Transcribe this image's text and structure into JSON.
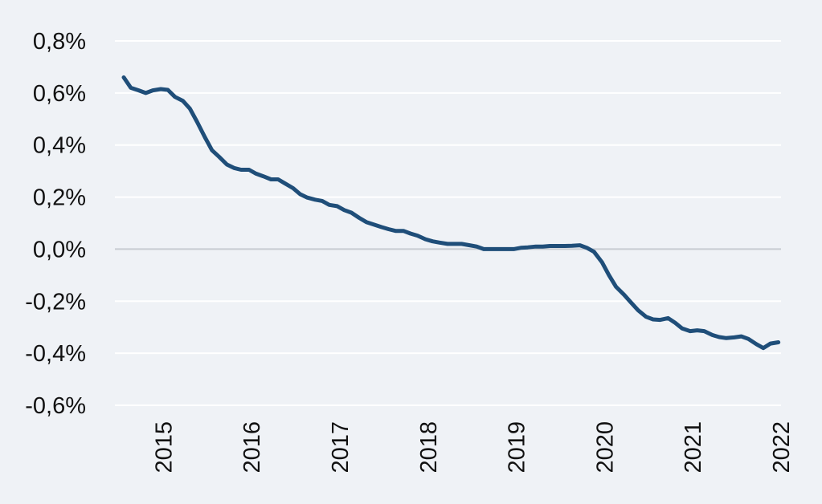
{
  "colors": {
    "background": "#eff2f6",
    "grid": "#ffffff",
    "zero_line": "#c8ccd2",
    "series": "#1f4e79",
    "text": "#111111"
  },
  "chart_data": {
    "type": "line",
    "title": "",
    "xlabel": "",
    "ylabel": "",
    "x_ticks": [
      "2015",
      "2016",
      "2017",
      "2018",
      "2019",
      "2020",
      "2021",
      "2022"
    ],
    "y_ticks": [
      0.8,
      0.6,
      0.4,
      0.2,
      0.0,
      -0.2,
      -0.4,
      -0.6
    ],
    "y_tick_labels": [
      "0,8%",
      "0,6%",
      "0,4%",
      "0,2%",
      "0,0%",
      "-0,2%",
      "-0,4%",
      "-0,6%"
    ],
    "ylim": [
      -0.6,
      0.8
    ],
    "xlim": [
      2014.45,
      2022.0
    ],
    "grid": "horizontal",
    "legend": "none",
    "series": [
      {
        "x": [
          2014.55,
          2014.63,
          2014.72,
          2014.8,
          2014.88,
          2014.97,
          2015.05,
          2015.13,
          2015.22,
          2015.3,
          2015.38,
          2015.47,
          2015.55,
          2015.63,
          2015.72,
          2015.8,
          2015.88,
          2015.97,
          2016.05,
          2016.13,
          2016.22,
          2016.3,
          2016.38,
          2016.47,
          2016.55,
          2016.63,
          2016.72,
          2016.8,
          2016.88,
          2016.97,
          2017.05,
          2017.13,
          2017.22,
          2017.3,
          2017.38,
          2017.47,
          2017.55,
          2017.63,
          2017.72,
          2017.8,
          2017.88,
          2017.97,
          2018.05,
          2018.13,
          2018.22,
          2018.3,
          2018.38,
          2018.47,
          2018.55,
          2018.63,
          2018.72,
          2018.8,
          2018.88,
          2018.97,
          2019.05,
          2019.13,
          2019.22,
          2019.3,
          2019.38,
          2019.47,
          2019.55,
          2019.63,
          2019.72,
          2019.8,
          2019.88,
          2019.97,
          2020.05,
          2020.13,
          2020.22,
          2020.3,
          2020.38,
          2020.47,
          2020.55,
          2020.63,
          2020.72,
          2020.8,
          2020.88,
          2020.97,
          2021.05,
          2021.13,
          2021.22,
          2021.3,
          2021.38,
          2021.47,
          2021.55,
          2021.63,
          2021.72,
          2021.8,
          2021.88,
          2021.97
        ],
        "y": [
          0.66,
          0.62,
          0.61,
          0.6,
          0.61,
          0.615,
          0.612,
          0.585,
          0.57,
          0.54,
          0.49,
          0.43,
          0.38,
          0.355,
          0.325,
          0.312,
          0.305,
          0.305,
          0.29,
          0.28,
          0.268,
          0.268,
          0.252,
          0.234,
          0.211,
          0.198,
          0.19,
          0.185,
          0.17,
          0.165,
          0.15,
          0.14,
          0.12,
          0.104,
          0.095,
          0.085,
          0.077,
          0.07,
          0.07,
          0.06,
          0.052,
          0.038,
          0.03,
          0.025,
          0.02,
          0.02,
          0.02,
          0.015,
          0.01,
          0.0,
          0.0,
          0.0,
          0.0,
          0.0,
          0.005,
          0.007,
          0.01,
          0.01,
          0.012,
          0.012,
          0.012,
          0.013,
          0.015,
          0.005,
          -0.01,
          -0.05,
          -0.1,
          -0.145,
          -0.175,
          -0.205,
          -0.235,
          -0.26,
          -0.27,
          -0.272,
          -0.265,
          -0.283,
          -0.305,
          -0.315,
          -0.312,
          -0.315,
          -0.33,
          -0.338,
          -0.342,
          -0.339,
          -0.335,
          -0.345,
          -0.365,
          -0.38,
          -0.363,
          -0.358
        ]
      }
    ]
  }
}
